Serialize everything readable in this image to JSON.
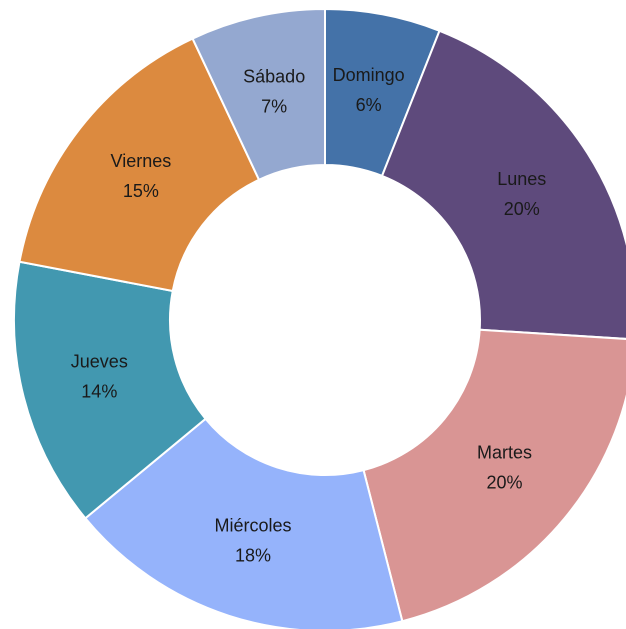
{
  "chart_data": {
    "type": "donut",
    "categories": [
      "Domingo",
      "Lunes",
      "Martes",
      "Miércoles",
      "Jueves",
      "Viernes",
      "Sábado"
    ],
    "values": [
      6,
      20,
      20,
      18,
      14,
      15,
      7
    ],
    "value_labels": [
      "6%",
      "20%",
      "20%",
      "18%",
      "14%",
      "15%",
      "7%"
    ],
    "colors": [
      "#4472a8",
      "#5e4a7c",
      "#d99594",
      "#95b3fb",
      "#4298b0",
      "#dc8a3f",
      "#94a8d0"
    ]
  }
}
